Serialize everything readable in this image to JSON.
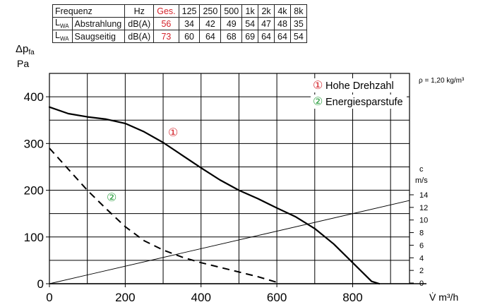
{
  "table": {
    "header": [
      "Frequenz",
      "Hz",
      "Ges.",
      "125",
      "250",
      "500",
      "1k",
      "2k",
      "4k",
      "8k"
    ],
    "rows": [
      {
        "symbol": "L",
        "symbol_sub": "WA",
        "label": "Abstrahlung",
        "unit": "dB(A)",
        "total": "56",
        "values": [
          "34",
          "42",
          "49",
          "54",
          "47",
          "48",
          "35"
        ]
      },
      {
        "symbol": "L",
        "symbol_sub": "WA",
        "label": "Saugseitig",
        "unit": "dB(A)",
        "total": "73",
        "values": [
          "60",
          "64",
          "68",
          "69",
          "64",
          "64",
          "54"
        ]
      }
    ]
  },
  "chart_data": {
    "type": "line",
    "ylabel_main": "Δp",
    "ylabel_sub": "fa",
    "ylabel_unit": "Pa",
    "xlabel": "V̇ m³/h",
    "density_note": "ρ = 1,20 kg/m³",
    "xlim": [
      0,
      950
    ],
    "ylim": [
      0,
      450
    ],
    "x_ticks": [
      "0",
      "200",
      "400",
      "600",
      "800"
    ],
    "y_ticks": [
      "0",
      "100",
      "200",
      "300",
      "400"
    ],
    "grid": true,
    "legend_position": "top-right",
    "right_axis": {
      "label": "c",
      "unit": "m/s",
      "ticks": [
        "0",
        "2",
        "4",
        "6",
        "8",
        "10",
        "12",
        "14"
      ]
    },
    "series": [
      {
        "name": "Hohe Drehzahl",
        "marker": "①",
        "style": "solid",
        "color": "#000000",
        "marker_color": "#d4242c",
        "x": [
          0,
          50,
          100,
          150,
          200,
          250,
          300,
          350,
          400,
          450,
          500,
          550,
          600,
          650,
          700,
          750,
          800,
          850,
          870
        ],
        "y": [
          378,
          364,
          357,
          352,
          343,
          325,
          302,
          275,
          248,
          222,
          200,
          182,
          162,
          143,
          118,
          85,
          45,
          5,
          0
        ]
      },
      {
        "name": "Energiesparstufe",
        "marker": "②",
        "style": "dashed",
        "color": "#000000",
        "marker_color": "#2a9d3e",
        "x": [
          0,
          50,
          100,
          150,
          200,
          250,
          300,
          350,
          400,
          450,
          500,
          550,
          600
        ],
        "y": [
          290,
          245,
          200,
          160,
          122,
          92,
          72,
          57,
          45,
          35,
          25,
          15,
          3
        ]
      },
      {
        "name": "",
        "style": "thin",
        "color": "#000000",
        "x": [
          0,
          950
        ],
        "y": [
          0,
          178
        ]
      }
    ]
  }
}
